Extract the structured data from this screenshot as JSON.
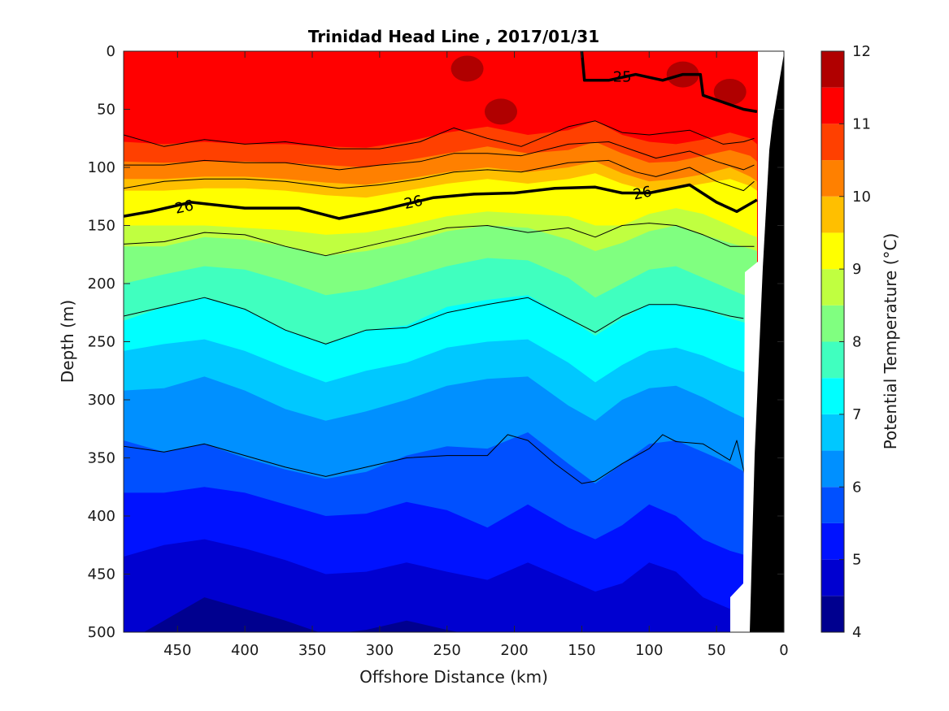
{
  "chart_data": {
    "type": "heatmap",
    "title": "Trinidad Head Line , 2017/01/31",
    "xlabel": "Offshore Distance (km)",
    "ylabel": "Depth (m)",
    "colorbar_label": "Potential Temperature (°C)",
    "xlim": [
      490,
      0
    ],
    "x_reversed": true,
    "ylim": [
      0,
      500
    ],
    "y_reversed": true,
    "xticks": [
      450,
      400,
      350,
      300,
      250,
      200,
      150,
      100,
      50,
      0
    ],
    "yticks": [
      0,
      50,
      100,
      150,
      200,
      250,
      300,
      350,
      400,
      450,
      500
    ],
    "colorbar_ticks": [
      4,
      5,
      6,
      7,
      8,
      9,
      10,
      11,
      12
    ],
    "colorbar_levels": [
      4,
      4.5,
      5,
      5.5,
      6,
      6.5,
      7,
      7.5,
      8,
      8.5,
      9,
      9.5,
      10,
      10.5,
      11,
      11.5,
      12
    ],
    "colorbar_colors": [
      "#00008f",
      "#0000d0",
      "#0012ff",
      "#0050ff",
      "#0090ff",
      "#00c8ff",
      "#00ffff",
      "#40ffbf",
      "#80ff80",
      "#c0ff40",
      "#ffff00",
      "#ffbf00",
      "#ff8000",
      "#ff4000",
      "#ff0000",
      "#b00000"
    ],
    "bathymetry_color": "#000000",
    "x_nodes": [
      490,
      460,
      430,
      400,
      370,
      340,
      310,
      280,
      250,
      220,
      190,
      160,
      140,
      120,
      100,
      80,
      60,
      40,
      25,
      20
    ],
    "isotherm_depths": [
      {
        "temp": 11.0,
        "depths": [
          78,
          80,
          78,
          80,
          80,
          82,
          83,
          78,
          70,
          65,
          72,
          68,
          60,
          72,
          78,
          80,
          76,
          70,
          75,
          80
        ]
      },
      {
        "temp": 10.5,
        "depths": [
          95,
          96,
          95,
          95,
          96,
          98,
          100,
          94,
          88,
          82,
          88,
          85,
          78,
          88,
          96,
          95,
          90,
          85,
          90,
          95
        ]
      },
      {
        "temp": 10.0,
        "depths": [
          110,
          110,
          108,
          108,
          110,
          113,
          115,
          110,
          104,
          100,
          104,
          100,
          95,
          105,
          112,
          110,
          106,
          100,
          108,
          112
        ]
      },
      {
        "temp": 9.5,
        "depths": [
          120,
          120,
          118,
          118,
          120,
          124,
          126,
          120,
          114,
          110,
          114,
          110,
          105,
          114,
          120,
          118,
          114,
          110,
          116,
          120
        ]
      },
      {
        "temp": 9.0,
        "depths": [
          150,
          150,
          150,
          152,
          154,
          158,
          156,
          150,
          142,
          138,
          140,
          142,
          150,
          150,
          140,
          135,
          140,
          150,
          158,
          160
        ]
      },
      {
        "temp": 8.5,
        "depths": [
          168,
          168,
          160,
          162,
          168,
          176,
          172,
          165,
          155,
          150,
          152,
          162,
          172,
          165,
          155,
          150,
          158,
          165,
          170,
          172
        ]
      },
      {
        "temp": 8.0,
        "depths": [
          200,
          192,
          185,
          188,
          198,
          210,
          205,
          195,
          185,
          178,
          180,
          195,
          212,
          200,
          188,
          185,
          195,
          205,
          212,
          215
        ]
      },
      {
        "temp": 7.5,
        "depths": [
          232,
          220,
          212,
          222,
          240,
          252,
          240,
          236,
          220,
          214,
          210,
          230,
          245,
          230,
          218,
          218,
          222,
          230,
          235,
          238
        ]
      },
      {
        "temp": 7.0,
        "depths": [
          258,
          252,
          248,
          258,
          272,
          285,
          275,
          268,
          255,
          250,
          248,
          268,
          285,
          270,
          258,
          255,
          262,
          272,
          278,
          280
        ]
      },
      {
        "temp": 6.5,
        "depths": [
          292,
          290,
          280,
          292,
          308,
          318,
          310,
          300,
          288,
          282,
          280,
          305,
          318,
          300,
          290,
          288,
          298,
          310,
          318,
          320
        ]
      },
      {
        "temp": 6.0,
        "depths": [
          335,
          345,
          338,
          350,
          360,
          368,
          362,
          348,
          340,
          342,
          328,
          355,
          372,
          355,
          338,
          335,
          345,
          355,
          365,
          368
        ]
      },
      {
        "temp": 5.5,
        "depths": [
          380,
          380,
          375,
          380,
          390,
          400,
          398,
          388,
          395,
          410,
          390,
          410,
          420,
          408,
          390,
          400,
          420,
          430,
          435,
          440
        ]
      },
      {
        "temp": 5.0,
        "depths": [
          435,
          425,
          420,
          428,
          438,
          450,
          448,
          440,
          448,
          455,
          440,
          455,
          465,
          458,
          440,
          448,
          470,
          480,
          485,
          490
        ]
      },
      {
        "temp": 4.5,
        "depths": [
          510,
          490,
          470,
          480,
          490,
          502,
          498,
          490,
          498,
          505,
          510,
          512,
          515,
          512,
          505,
          510,
          515,
          520,
          520,
          520
        ]
      }
    ],
    "warm_patches_11_5": [
      {
        "x": 210,
        "depth": 52
      },
      {
        "x": 235,
        "depth": 15
      },
      {
        "x": 75,
        "depth": 20
      },
      {
        "x": 40,
        "depth": 35
      }
    ],
    "contour_lines": [
      {
        "label": "25",
        "emphasis": "bold",
        "points": [
          [
            150,
            0
          ],
          [
            148,
            25
          ],
          [
            130,
            25
          ],
          [
            110,
            20
          ],
          [
            90,
            25
          ],
          [
            75,
            20
          ],
          [
            62,
            20
          ],
          [
            60,
            38
          ],
          [
            45,
            44
          ],
          [
            30,
            50
          ],
          [
            20,
            52
          ]
        ]
      },
      {
        "label": "26",
        "emphasis": "bold",
        "points": [
          [
            490,
            142
          ],
          [
            470,
            138
          ],
          [
            440,
            130
          ],
          [
            400,
            135
          ],
          [
            360,
            135
          ],
          [
            330,
            144
          ],
          [
            300,
            137
          ],
          [
            260,
            126
          ],
          [
            230,
            123
          ],
          [
            200,
            122
          ],
          [
            170,
            118
          ],
          [
            140,
            117
          ],
          [
            120,
            122
          ],
          [
            100,
            122
          ],
          [
            70,
            115
          ],
          [
            50,
            130
          ],
          [
            35,
            138
          ],
          [
            20,
            128
          ]
        ]
      },
      {
        "label": "",
        "emphasis": "thin",
        "points": [
          [
            490,
            72
          ],
          [
            460,
            82
          ],
          [
            430,
            76
          ],
          [
            400,
            80
          ],
          [
            370,
            78
          ],
          [
            330,
            84
          ],
          [
            300,
            84
          ],
          [
            270,
            78
          ],
          [
            245,
            66
          ],
          [
            220,
            75
          ],
          [
            195,
            82
          ],
          [
            160,
            65
          ],
          [
            140,
            60
          ],
          [
            120,
            70
          ],
          [
            100,
            72
          ],
          [
            70,
            68
          ],
          [
            45,
            80
          ],
          [
            30,
            78
          ],
          [
            22,
            75
          ]
        ]
      },
      {
        "label": "",
        "emphasis": "thin",
        "points": [
          [
            490,
            98
          ],
          [
            460,
            98
          ],
          [
            430,
            94
          ],
          [
            400,
            96
          ],
          [
            370,
            96
          ],
          [
            330,
            102
          ],
          [
            300,
            98
          ],
          [
            270,
            95
          ],
          [
            245,
            88
          ],
          [
            220,
            88
          ],
          [
            195,
            90
          ],
          [
            160,
            80
          ],
          [
            130,
            78
          ],
          [
            110,
            86
          ],
          [
            95,
            92
          ],
          [
            70,
            86
          ],
          [
            50,
            95
          ],
          [
            30,
            102
          ],
          [
            22,
            98
          ]
        ]
      },
      {
        "label": "",
        "emphasis": "thin",
        "points": [
          [
            490,
            118
          ],
          [
            460,
            112
          ],
          [
            430,
            110
          ],
          [
            400,
            110
          ],
          [
            370,
            112
          ],
          [
            330,
            118
          ],
          [
            300,
            115
          ],
          [
            270,
            110
          ],
          [
            245,
            104
          ],
          [
            220,
            102
          ],
          [
            195,
            104
          ],
          [
            160,
            96
          ],
          [
            130,
            94
          ],
          [
            110,
            104
          ],
          [
            95,
            108
          ],
          [
            70,
            100
          ],
          [
            50,
            112
          ],
          [
            30,
            120
          ],
          [
            22,
            112
          ]
        ]
      },
      {
        "label": "",
        "emphasis": "thin",
        "points": [
          [
            490,
            166
          ],
          [
            460,
            164
          ],
          [
            430,
            156
          ],
          [
            400,
            158
          ],
          [
            370,
            168
          ],
          [
            340,
            176
          ],
          [
            310,
            168
          ],
          [
            280,
            160
          ],
          [
            250,
            152
          ],
          [
            220,
            150
          ],
          [
            190,
            156
          ],
          [
            160,
            152
          ],
          [
            140,
            160
          ],
          [
            120,
            150
          ],
          [
            100,
            148
          ],
          [
            80,
            150
          ],
          [
            60,
            158
          ],
          [
            40,
            168
          ],
          [
            22,
            168
          ]
        ]
      },
      {
        "label": "",
        "emphasis": "thin",
        "points": [
          [
            490,
            228
          ],
          [
            460,
            220
          ],
          [
            430,
            212
          ],
          [
            400,
            222
          ],
          [
            370,
            240
          ],
          [
            340,
            252
          ],
          [
            310,
            240
          ],
          [
            280,
            238
          ],
          [
            250,
            225
          ],
          [
            220,
            218
          ],
          [
            190,
            212
          ],
          [
            160,
            230
          ],
          [
            140,
            242
          ],
          [
            120,
            228
          ],
          [
            100,
            218
          ],
          [
            80,
            218
          ],
          [
            60,
            222
          ],
          [
            40,
            228
          ],
          [
            30,
            230
          ]
        ]
      },
      {
        "label": "",
        "emphasis": "thin",
        "points": [
          [
            490,
            340
          ],
          [
            460,
            345
          ],
          [
            430,
            338
          ],
          [
            400,
            348
          ],
          [
            370,
            358
          ],
          [
            340,
            366
          ],
          [
            310,
            358
          ],
          [
            280,
            350
          ],
          [
            250,
            348
          ],
          [
            220,
            348
          ],
          [
            205,
            330
          ],
          [
            190,
            335
          ],
          [
            170,
            355
          ],
          [
            150,
            372
          ],
          [
            140,
            370
          ],
          [
            120,
            355
          ],
          [
            100,
            342
          ],
          [
            90,
            330
          ],
          [
            80,
            336
          ],
          [
            60,
            338
          ],
          [
            40,
            352
          ],
          [
            35,
            335
          ],
          [
            30,
            360
          ],
          [
            28,
            370
          ]
        ]
      }
    ]
  }
}
